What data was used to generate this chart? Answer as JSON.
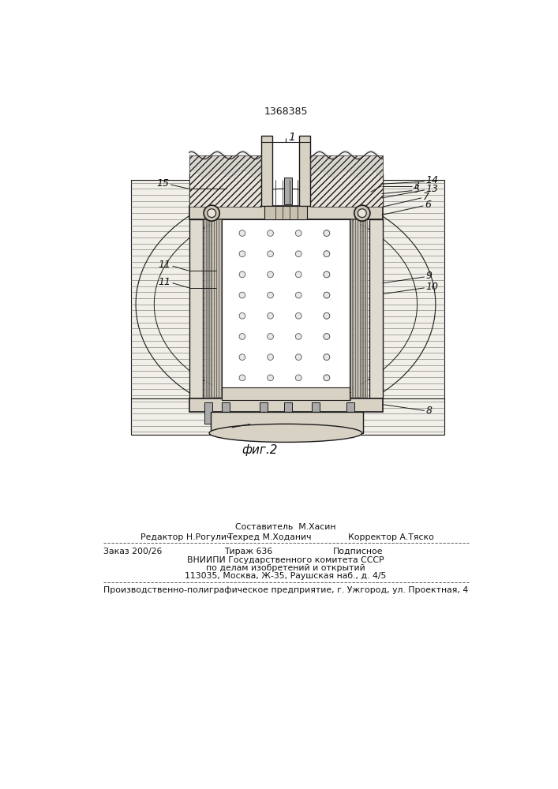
{
  "patent_number": "1368385",
  "fig_label": "фиг.2",
  "background_color": "#ffffff",
  "line_color": "#1a1a1a",
  "hatch_color": "#555555",
  "soil_color": "#f0ede8",
  "device_fill": "#e8e4dc",
  "white_fill": "#ffffff",
  "composer_line": "Составитель  М.Хасин",
  "editor_left": "Редактор Н.Рогулич",
  "editor_mid": "Техред М.Ходанич",
  "editor_right": "Корректор А.Тяско",
  "order_left": "Заказ 200/26",
  "order_mid": "Тираж 636",
  "order_right": "Подписное",
  "vniipи1": "ВНИИПИ Государственного комитета СССР",
  "vniipи2": "по делам изобретений и открытий",
  "vniipи3": "113035, Москва, Ж-35, Раушская наб., д. 4/5",
  "factory": "Производственно-полиграфическое предприятие, г. Ужгород, ул. Проектная, 4"
}
